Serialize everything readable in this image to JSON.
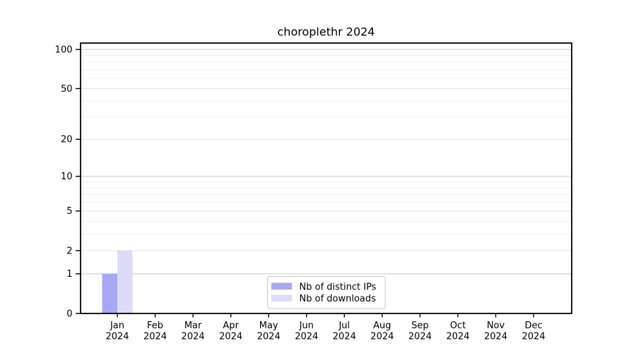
{
  "chart_data": {
    "type": "bar",
    "title": "choroplethr 2024",
    "categories": [
      "Jan",
      "Feb",
      "Mar",
      "Apr",
      "May",
      "Jun",
      "Jul",
      "Aug",
      "Sep",
      "Oct",
      "Nov",
      "Dec"
    ],
    "category_year": "2024",
    "series": [
      {
        "name": "Nb of distinct IPs",
        "color": "#a7a7f4",
        "values": [
          1,
          0,
          0,
          0,
          0,
          0,
          0,
          0,
          0,
          0,
          0,
          0
        ]
      },
      {
        "name": "Nb of downloads",
        "color": "#dcdcf9",
        "values": [
          2,
          0,
          0,
          0,
          0,
          0,
          0,
          0,
          0,
          0,
          0,
          0
        ]
      }
    ],
    "xlabel": "",
    "ylabel": "",
    "y_scale": "log1p",
    "ylim": [
      0,
      112
    ],
    "y_ticks": [
      0,
      1,
      2,
      5,
      10,
      20,
      50,
      100
    ],
    "y_decade_gridlines": [
      1,
      10,
      100
    ],
    "y_minor_gridlines": [
      3,
      4,
      6,
      7,
      8,
      9,
      30,
      40,
      60,
      70,
      80,
      90
    ],
    "grid": "on",
    "legend_position": "lower center"
  },
  "style": {
    "background": "#ffffff",
    "spine_color": "#000000",
    "tick_color": "#000000",
    "text_color": "#000000",
    "grid_decade_color": "#c8c8c8",
    "grid_labeled_color": "#e3e3e3",
    "grid_minor_color": "#f0f0f0",
    "legend_border_color": "#c9c9c9",
    "legend_background": "#ffffff"
  }
}
